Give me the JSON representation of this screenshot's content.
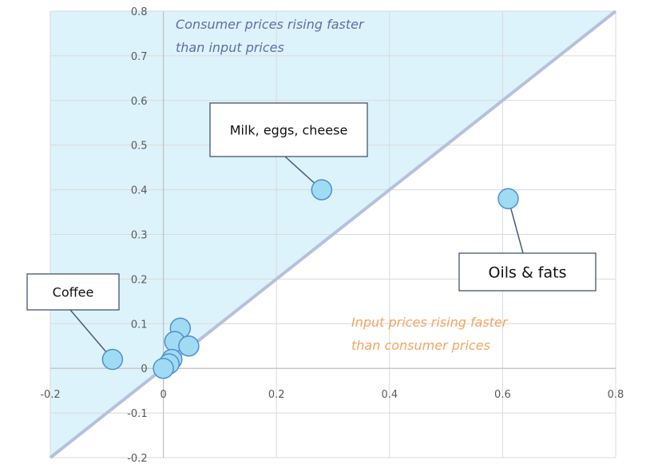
{
  "chart_data": {
    "type": "scatter",
    "title": "",
    "xlabel": "",
    "ylabel": "",
    "xlim": [
      -0.2,
      0.8
    ],
    "ylim": [
      -0.2,
      0.8
    ],
    "x_ticks": [
      -0.2,
      0,
      0.2,
      0.4,
      0.6,
      0.8
    ],
    "x_tick_labels": [
      "-0.2",
      "0",
      "0.2",
      "0.4",
      "0.6",
      "0.8"
    ],
    "y_ticks": [
      -0.2,
      -0.1,
      0,
      0.1,
      0.2,
      0.3,
      0.4,
      0.5,
      0.6,
      0.7,
      0.8
    ],
    "y_tick_labels": [
      "-0.2",
      "-0.1",
      "0",
      "0.1",
      "0.2",
      "0.3",
      "0.4",
      "0.5",
      "0.6",
      "0.7",
      "0.8"
    ],
    "grid": true,
    "reference_line": {
      "from": [
        -0.2,
        -0.2
      ],
      "to": [
        0.8,
        0.8
      ]
    },
    "points": [
      {
        "x": -0.09,
        "y": 0.02,
        "label": "Coffee"
      },
      {
        "x": 0.28,
        "y": 0.4,
        "label": "Milk, eggs, cheese"
      },
      {
        "x": 0.61,
        "y": 0.38,
        "label": "Oils & fats"
      },
      {
        "x": 0.03,
        "y": 0.09,
        "label": ""
      },
      {
        "x": 0.02,
        "y": 0.06,
        "label": ""
      },
      {
        "x": 0.045,
        "y": 0.05,
        "label": ""
      },
      {
        "x": 0.015,
        "y": 0.02,
        "label": ""
      },
      {
        "x": 0.01,
        "y": 0.01,
        "label": ""
      },
      {
        "x": 0.0,
        "y": 0.0,
        "label": ""
      }
    ],
    "annotations": [
      {
        "lines": [
          "Consumer prices rising faster",
          "than input prices"
        ],
        "region": "above-diagonal"
      },
      {
        "lines": [
          "Input prices rising faster",
          "than consumer prices"
        ],
        "region": "below-diagonal"
      }
    ],
    "colors": {
      "upper_region_fill": "#ddf3fb",
      "diagonal_line": "#b5c1dc",
      "point_fill": "#9fdcf3",
      "point_stroke": "#4f8ed0",
      "grid": "#d9d9d9",
      "axis": "#bfbfbf",
      "upper_label": "#5b6fa6",
      "lower_label": "#f4a460"
    }
  }
}
